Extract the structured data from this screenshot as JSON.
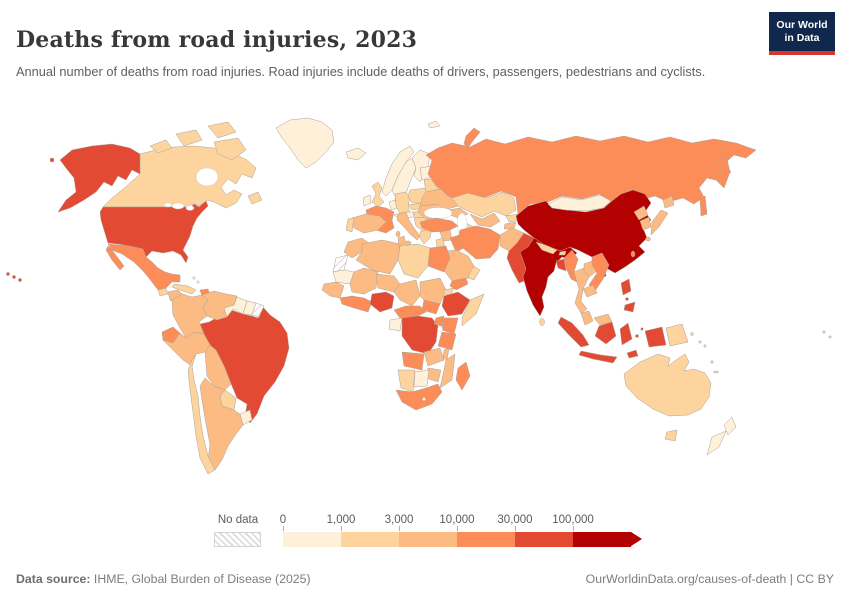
{
  "header": {
    "title": "Deaths from road injuries, 2023",
    "subtitle": "Annual number of deaths from road injuries. Road injuries include deaths of drivers, passengers, pedestrians and cyclists.",
    "logo": {
      "line1": "Our World",
      "line2": "in Data",
      "bg": "#10284c",
      "accent": "#d8352f"
    }
  },
  "footer": {
    "source_label": "Data source:",
    "source_text": " IHME, Global Burden of Disease (2025)",
    "right_text": "OurWorldinData.org/causes-of-death | CC BY"
  },
  "chart_data": {
    "type": "choropleth",
    "title": "Deaths from road injuries, 2023",
    "unit": "annual deaths from road injuries",
    "legend": {
      "no_data_label": "No data",
      "tick_labels": [
        "0",
        "1,000",
        "3,000",
        "10,000",
        "30,000",
        "100,000"
      ],
      "bucket_ranges": [
        "0-1,000",
        "1,000-3,000",
        "3,000-10,000",
        "10,000-30,000",
        "30,000-100,000",
        "100,000+"
      ],
      "bucket_colors": [
        "#FEF0D9",
        "#FDD49E",
        "#FDBB84",
        "#FC8D59",
        "#E34A33",
        "#B30000"
      ],
      "arrow_on_last_bucket": true
    },
    "countries": [
      {
        "id": "united-states",
        "name": "United States",
        "bucket": 4
      },
      {
        "id": "canada",
        "name": "Canada",
        "bucket": 1
      },
      {
        "id": "greenland",
        "name": "Greenland",
        "bucket": 0
      },
      {
        "id": "mexico",
        "name": "Mexico",
        "bucket": 3
      },
      {
        "id": "guatemala",
        "name": "Guatemala",
        "bucket": 1
      },
      {
        "id": "honduras-nicaragua",
        "name": "Honduras & Nicaragua",
        "bucket": 2
      },
      {
        "id": "costa-rica",
        "name": "Costa Rica",
        "bucket": 1
      },
      {
        "id": "panama",
        "name": "Panama",
        "bucket": 2
      },
      {
        "id": "cuba",
        "name": "Cuba",
        "bucket": 1
      },
      {
        "id": "jamaica",
        "name": "Jamaica",
        "bucket": 1
      },
      {
        "id": "hispaniola",
        "name": "Haiti & Dominican Republic",
        "bucket": 3
      },
      {
        "id": "puerto-rico",
        "name": "Puerto Rico",
        "bucket": 2
      },
      {
        "id": "bahamas",
        "name": "Bahamas",
        "bucket": 0
      },
      {
        "id": "lesser-antilles",
        "name": "Lesser Antilles",
        "bucket": 1
      },
      {
        "id": "colombia",
        "name": "Colombia",
        "bucket": 2
      },
      {
        "id": "venezuela",
        "name": "Venezuela",
        "bucket": 2
      },
      {
        "id": "guyana",
        "name": "Guyana",
        "bucket": 0
      },
      {
        "id": "suriname",
        "name": "Suriname",
        "bucket": 0
      },
      {
        "id": "french-guiana",
        "name": "French Guiana",
        "bucket": "no_data"
      },
      {
        "id": "ecuador",
        "name": "Ecuador",
        "bucket": 3
      },
      {
        "id": "peru",
        "name": "Peru",
        "bucket": 2
      },
      {
        "id": "brazil",
        "name": "Brazil",
        "bucket": 4
      },
      {
        "id": "bolivia",
        "name": "Bolivia",
        "bucket": 2
      },
      {
        "id": "paraguay",
        "name": "Paraguay",
        "bucket": 1
      },
      {
        "id": "uruguay",
        "name": "Uruguay",
        "bucket": 0
      },
      {
        "id": "argentina",
        "name": "Argentina",
        "bucket": 2
      },
      {
        "id": "chile",
        "name": "Chile",
        "bucket": 1
      },
      {
        "id": "iceland",
        "name": "Iceland",
        "bucket": 0
      },
      {
        "id": "norway",
        "name": "Norway",
        "bucket": 0
      },
      {
        "id": "sweden",
        "name": "Sweden",
        "bucket": 0
      },
      {
        "id": "finland",
        "name": "Finland",
        "bucket": 0
      },
      {
        "id": "denmark",
        "name": "Denmark",
        "bucket": 0
      },
      {
        "id": "united-kingdom",
        "name": "United Kingdom",
        "bucket": 1
      },
      {
        "id": "ireland",
        "name": "Ireland",
        "bucket": 0
      },
      {
        "id": "france",
        "name": "France",
        "bucket": 3
      },
      {
        "id": "spain",
        "name": "Spain",
        "bucket": 2
      },
      {
        "id": "portugal",
        "name": "Portugal",
        "bucket": 1
      },
      {
        "id": "germany",
        "name": "Germany",
        "bucket": 1
      },
      {
        "id": "benelux",
        "name": "Belgium & Netherlands",
        "bucket": 0
      },
      {
        "id": "poland",
        "name": "Poland",
        "bucket": 1
      },
      {
        "id": "czechia",
        "name": "Czechia & Slovakia",
        "bucket": 1
      },
      {
        "id": "austria-switzerland",
        "name": "Austria & Switzerland",
        "bucket": 0
      },
      {
        "id": "hungary",
        "name": "Hungary",
        "bucket": 1
      },
      {
        "id": "italy",
        "name": "Italy",
        "bucket": 2
      },
      {
        "id": "balkans",
        "name": "Western Balkans",
        "bucket": 1
      },
      {
        "id": "greece",
        "name": "Greece",
        "bucket": 1
      },
      {
        "id": "bulgaria",
        "name": "Bulgaria",
        "bucket": 1
      },
      {
        "id": "romania",
        "name": "Romania",
        "bucket": 2
      },
      {
        "id": "ukraine",
        "name": "Ukraine",
        "bucket": 2
      },
      {
        "id": "belarus",
        "name": "Belarus",
        "bucket": 1
      },
      {
        "id": "baltics",
        "name": "Baltic states",
        "bucket": 0
      },
      {
        "id": "svalbard",
        "name": "Svalbard",
        "bucket": 0
      },
      {
        "id": "russia",
        "name": "Russia",
        "bucket": 3
      },
      {
        "id": "kazakhstan",
        "name": "Kazakhstan",
        "bucket": 1
      },
      {
        "id": "uzbekistan",
        "name": "Uzbekistan",
        "bucket": 2
      },
      {
        "id": "turkmenistan",
        "name": "Turkmenistan",
        "bucket": 1
      },
      {
        "id": "kyrgyzstan",
        "name": "Kyrgyzstan",
        "bucket": 1
      },
      {
        "id": "tajikistan",
        "name": "Tajikistan",
        "bucket": 2
      },
      {
        "id": "caucasus",
        "name": "Caucasus",
        "bucket": 2
      },
      {
        "id": "turkey",
        "name": "Turkey",
        "bucket": 3
      },
      {
        "id": "syria",
        "name": "Syria",
        "bucket": 2
      },
      {
        "id": "levant",
        "name": "Israel & Jordan",
        "bucket": 1
      },
      {
        "id": "iraq",
        "name": "Iraq",
        "bucket": 3
      },
      {
        "id": "saudi-arabia",
        "name": "Saudi Arabia",
        "bucket": 2
      },
      {
        "id": "yemen",
        "name": "Yemen",
        "bucket": 3
      },
      {
        "id": "oman",
        "name": "Oman & UAE",
        "bucket": 1
      },
      {
        "id": "iran",
        "name": "Iran",
        "bucket": 3
      },
      {
        "id": "afghanistan",
        "name": "Afghanistan",
        "bucket": 2
      },
      {
        "id": "pakistan",
        "name": "Pakistan",
        "bucket": 4
      },
      {
        "id": "india",
        "name": "India",
        "bucket": 5
      },
      {
        "id": "nepal",
        "name": "Nepal",
        "bucket": 1
      },
      {
        "id": "bhutan",
        "name": "Bhutan",
        "bucket": 1
      },
      {
        "id": "bangladesh",
        "name": "Bangladesh",
        "bucket": 4
      },
      {
        "id": "sri-lanka",
        "name": "Sri Lanka",
        "bucket": 1
      },
      {
        "id": "myanmar",
        "name": "Myanmar",
        "bucket": 3
      },
      {
        "id": "thailand",
        "name": "Thailand",
        "bucket": 2
      },
      {
        "id": "laos",
        "name": "Laos",
        "bucket": 2
      },
      {
        "id": "vietnam",
        "name": "Vietnam",
        "bucket": 3
      },
      {
        "id": "cambodia",
        "name": "Cambodia",
        "bucket": 2
      },
      {
        "id": "malaysia",
        "name": "Malaysia",
        "bucket": 2
      },
      {
        "id": "china",
        "name": "China",
        "bucket": 5
      },
      {
        "id": "mongolia",
        "name": "Mongolia",
        "bucket": 0
      },
      {
        "id": "north-korea",
        "name": "North Korea",
        "bucket": 2
      },
      {
        "id": "south-korea",
        "name": "South Korea",
        "bucket": 2
      },
      {
        "id": "japan",
        "name": "Japan",
        "bucket": 2
      },
      {
        "id": "taiwan",
        "name": "Taiwan",
        "bucket": 3
      },
      {
        "id": "philippines",
        "name": "Philippines",
        "bucket": 4
      },
      {
        "id": "indonesia",
        "name": "Indonesia",
        "bucket": 4
      },
      {
        "id": "papua-new-guinea",
        "name": "Papua New Guinea",
        "bucket": 1
      },
      {
        "id": "solomon-islands",
        "name": "Solomon Islands",
        "bucket": 1
      },
      {
        "id": "fiji",
        "name": "Fiji & Pacific islands",
        "bucket": 1
      },
      {
        "id": "australia",
        "name": "Australia",
        "bucket": 1
      },
      {
        "id": "new-zealand",
        "name": "New Zealand",
        "bucket": 0
      },
      {
        "id": "morocco",
        "name": "Morocco",
        "bucket": 2
      },
      {
        "id": "western-sahara",
        "name": "Western Sahara",
        "bucket": "no_data"
      },
      {
        "id": "algeria",
        "name": "Algeria",
        "bucket": 2
      },
      {
        "id": "tunisia",
        "name": "Tunisia",
        "bucket": 2
      },
      {
        "id": "libya",
        "name": "Libya",
        "bucket": 1
      },
      {
        "id": "egypt",
        "name": "Egypt",
        "bucket": 3
      },
      {
        "id": "mauritania",
        "name": "Mauritania",
        "bucket": 0
      },
      {
        "id": "mali",
        "name": "Mali",
        "bucket": 2
      },
      {
        "id": "senegal-guinea",
        "name": "Senegal & Guinea",
        "bucket": 2
      },
      {
        "id": "ivory-ghana",
        "name": "Côte d'Ivoire & Ghana",
        "bucket": 3
      },
      {
        "id": "niger",
        "name": "Niger",
        "bucket": 2
      },
      {
        "id": "nigeria",
        "name": "Nigeria",
        "bucket": 4
      },
      {
        "id": "chad",
        "name": "Chad",
        "bucket": 2
      },
      {
        "id": "sudan",
        "name": "Sudan",
        "bucket": 2
      },
      {
        "id": "south-sudan",
        "name": "South Sudan",
        "bucket": 3
      },
      {
        "id": "eritrea",
        "name": "Eritrea",
        "bucket": 1
      },
      {
        "id": "ethiopia",
        "name": "Ethiopia",
        "bucket": 4
      },
      {
        "id": "somalia",
        "name": "Somalia",
        "bucket": 1
      },
      {
        "id": "cameroon-car",
        "name": "Cameroon & Central African Rep.",
        "bucket": 3
      },
      {
        "id": "gabon-congo",
        "name": "Gabon & Congo",
        "bucket": 0
      },
      {
        "id": "dr-congo",
        "name": "Democratic Republic of Congo",
        "bucket": 4
      },
      {
        "id": "uganda",
        "name": "Uganda",
        "bucket": 3
      },
      {
        "id": "kenya",
        "name": "Kenya",
        "bucket": 3
      },
      {
        "id": "tanzania",
        "name": "Tanzania",
        "bucket": 3
      },
      {
        "id": "angola",
        "name": "Angola",
        "bucket": 3
      },
      {
        "id": "zambia",
        "name": "Zambia",
        "bucket": 2
      },
      {
        "id": "malawi",
        "name": "Malawi",
        "bucket": 2
      },
      {
        "id": "mozambique",
        "name": "Mozambique",
        "bucket": 2
      },
      {
        "id": "zimbabwe",
        "name": "Zimbabwe",
        "bucket": 2
      },
      {
        "id": "namibia",
        "name": "Namibia",
        "bucket": 1
      },
      {
        "id": "botswana",
        "name": "Botswana",
        "bucket": 0
      },
      {
        "id": "south-africa",
        "name": "South Africa",
        "bucket": 3
      },
      {
        "id": "lesotho",
        "name": "Lesotho",
        "bucket": 0
      },
      {
        "id": "madagascar",
        "name": "Madagascar",
        "bucket": 3
      }
    ]
  }
}
